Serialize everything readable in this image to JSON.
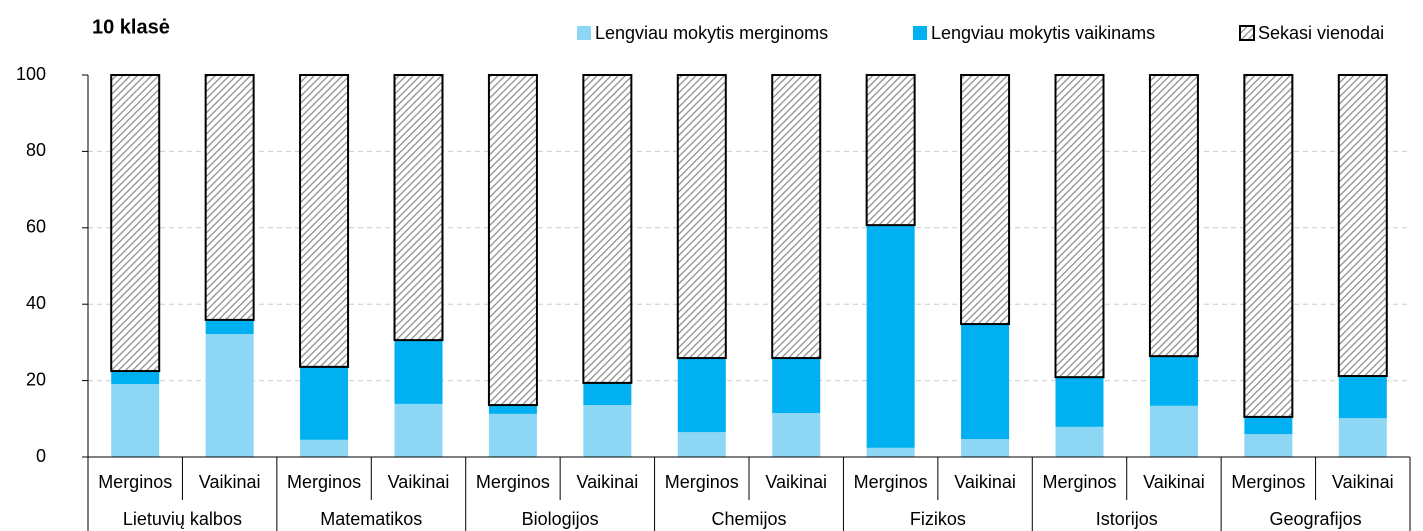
{
  "chart_data": {
    "type": "stacked_bar",
    "title": "10 klasė",
    "categories": [
      "Merginos",
      "Vaikinai",
      "Merginos",
      "Vaikinai",
      "Merginos",
      "Vaikinai",
      "Merginos",
      "Vaikinai",
      "Merginos",
      "Vaikinai",
      "Merginos",
      "Vaikinai",
      "Merginos",
      "Vaikinai"
    ],
    "groups": [
      "Lietuvių kalbos",
      "Matematikos",
      "Biologijos",
      "Chemijos",
      "Fizikos",
      "Istorijos",
      "Geografijos"
    ],
    "series": [
      {
        "name": "Lengviau mokytis merginoms",
        "color": "#8dd7f5",
        "values": [
          19.1,
          32.2,
          4.5,
          13.9,
          11.3,
          13.6,
          6.5,
          11.5,
          2.4,
          4.7,
          7.9,
          13.4,
          6.0,
          10.2
        ]
      },
      {
        "name": "Lengviau mokytis vaikinams",
        "color": "#00b0f0",
        "values": [
          3.4,
          3.7,
          19.1,
          16.7,
          2.3,
          5.8,
          19.4,
          14.4,
          58.3,
          30.1,
          13.0,
          13.0,
          4.5,
          11.0
        ]
      },
      {
        "name": "Sekasi vienodai",
        "color": "#8c8c8c",
        "pattern": "hatch",
        "values": [
          77.5,
          64.1,
          76.4,
          69.4,
          86.4,
          80.6,
          74.1,
          74.1,
          39.3,
          65.2,
          79.1,
          73.6,
          89.5,
          78.8
        ]
      }
    ],
    "ylim": [
      0,
      100
    ],
    "yticks": [
      0,
      20,
      40,
      60,
      80,
      100
    ],
    "grid": true
  }
}
